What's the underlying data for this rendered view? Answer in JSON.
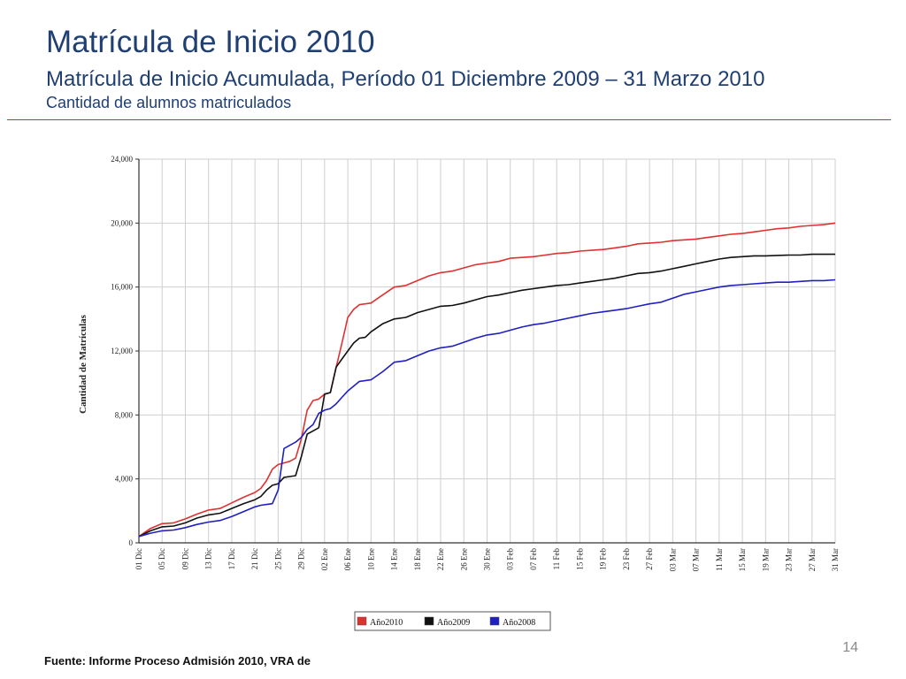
{
  "slide": {
    "title": "Matrícula de Inicio 2010",
    "subtitle": "Matrícula de Inicio Acumulada, Período 01 Diciembre 2009 – 31 Marzo 2010",
    "subsubtitle": "Cantidad de alumnos matriculados",
    "page_number": "14",
    "source": "Fuente: Informe Proceso Admisión 2010, VRA de"
  },
  "chart_data": {
    "type": "line",
    "ylabel": "Cantidad de Matrículas",
    "xlabel": "",
    "ylim": [
      0,
      24000
    ],
    "y_ticks": [
      "0",
      "4,000",
      "8,000",
      "12,000",
      "16,000",
      "20,000",
      "24,000"
    ],
    "x_tick_labels": [
      "01 Dic",
      "05 Dic",
      "09 Dic",
      "13 Dic",
      "17 Dic",
      "21 Dic",
      "25 Dic",
      "29 Dic",
      "02 Ene",
      "06 Ene",
      "10 Ene",
      "14 Ene",
      "18 Ene",
      "22 Ene",
      "26 Ene",
      "30 Ene",
      "03 Feb",
      "07 Feb",
      "11 Feb",
      "15 Feb",
      "19 Feb",
      "23 Feb",
      "27 Feb",
      "03 Mar",
      "07 Mar",
      "11 Mar",
      "15 Mar",
      "19 Mar",
      "23 Mar",
      "27 Mar",
      "31 Mar"
    ],
    "x_tick_days": [
      1,
      5,
      9,
      13,
      17,
      21,
      25,
      29,
      33,
      37,
      41,
      45,
      49,
      53,
      57,
      61,
      65,
      69,
      73,
      77,
      81,
      85,
      89,
      93,
      97,
      101,
      105,
      109,
      113,
      117,
      121
    ],
    "x_range": [
      1,
      121
    ],
    "grid": true,
    "legend_position": "bottom-center",
    "series": [
      {
        "name": "Año2010",
        "color": "#e03131",
        "points": [
          [
            1,
            400
          ],
          [
            3,
            900
          ],
          [
            5,
            1200
          ],
          [
            7,
            1250
          ],
          [
            9,
            1500
          ],
          [
            11,
            1800
          ],
          [
            13,
            2050
          ],
          [
            15,
            2150
          ],
          [
            17,
            2500
          ],
          [
            19,
            2850
          ],
          [
            21,
            3150
          ],
          [
            22,
            3400
          ],
          [
            23,
            3900
          ],
          [
            24,
            4600
          ],
          [
            25,
            4900
          ],
          [
            26,
            5000
          ],
          [
            27,
            5100
          ],
          [
            28,
            5300
          ],
          [
            29,
            6500
          ],
          [
            30,
            8300
          ],
          [
            31,
            8900
          ],
          [
            32,
            9000
          ],
          [
            33,
            9300
          ],
          [
            34,
            9400
          ],
          [
            35,
            11000
          ],
          [
            36,
            12500
          ],
          [
            37,
            14100
          ],
          [
            38,
            14600
          ],
          [
            39,
            14900
          ],
          [
            41,
            15000
          ],
          [
            43,
            15500
          ],
          [
            45,
            16000
          ],
          [
            47,
            16100
          ],
          [
            49,
            16400
          ],
          [
            51,
            16700
          ],
          [
            53,
            16900
          ],
          [
            55,
            17000
          ],
          [
            57,
            17200
          ],
          [
            59,
            17400
          ],
          [
            61,
            17500
          ],
          [
            63,
            17600
          ],
          [
            65,
            17800
          ],
          [
            67,
            17850
          ],
          [
            69,
            17900
          ],
          [
            71,
            18000
          ],
          [
            73,
            18100
          ],
          [
            75,
            18150
          ],
          [
            77,
            18250
          ],
          [
            79,
            18300
          ],
          [
            81,
            18350
          ],
          [
            83,
            18450
          ],
          [
            85,
            18550
          ],
          [
            87,
            18700
          ],
          [
            89,
            18750
          ],
          [
            91,
            18800
          ],
          [
            93,
            18900
          ],
          [
            95,
            18950
          ],
          [
            97,
            19000
          ],
          [
            99,
            19100
          ],
          [
            101,
            19200
          ],
          [
            103,
            19300
          ],
          [
            105,
            19350
          ],
          [
            107,
            19450
          ],
          [
            109,
            19550
          ],
          [
            111,
            19650
          ],
          [
            113,
            19700
          ],
          [
            115,
            19800
          ],
          [
            117,
            19850
          ],
          [
            119,
            19900
          ],
          [
            121,
            20000
          ]
        ]
      },
      {
        "name": "Año2009",
        "color": "#111111",
        "points": [
          [
            1,
            400
          ],
          [
            3,
            750
          ],
          [
            5,
            1000
          ],
          [
            7,
            1050
          ],
          [
            9,
            1250
          ],
          [
            11,
            1550
          ],
          [
            13,
            1750
          ],
          [
            15,
            1850
          ],
          [
            17,
            2150
          ],
          [
            19,
            2450
          ],
          [
            21,
            2700
          ],
          [
            22,
            2900
          ],
          [
            23,
            3300
          ],
          [
            24,
            3600
          ],
          [
            25,
            3700
          ],
          [
            26,
            4100
          ],
          [
            27,
            4150
          ],
          [
            28,
            4200
          ],
          [
            29,
            5400
          ],
          [
            30,
            6800
          ],
          [
            31,
            7000
          ],
          [
            32,
            7200
          ],
          [
            33,
            9300
          ],
          [
            34,
            9400
          ],
          [
            35,
            11000
          ],
          [
            36,
            11500
          ],
          [
            37,
            12000
          ],
          [
            38,
            12500
          ],
          [
            39,
            12800
          ],
          [
            40,
            12850
          ],
          [
            41,
            13200
          ],
          [
            43,
            13700
          ],
          [
            45,
            14000
          ],
          [
            47,
            14100
          ],
          [
            49,
            14400
          ],
          [
            51,
            14600
          ],
          [
            53,
            14800
          ],
          [
            55,
            14850
          ],
          [
            57,
            15000
          ],
          [
            59,
            15200
          ],
          [
            61,
            15400
          ],
          [
            63,
            15500
          ],
          [
            65,
            15650
          ],
          [
            67,
            15800
          ],
          [
            69,
            15900
          ],
          [
            71,
            16000
          ],
          [
            73,
            16100
          ],
          [
            75,
            16150
          ],
          [
            77,
            16250
          ],
          [
            79,
            16350
          ],
          [
            81,
            16450
          ],
          [
            83,
            16550
          ],
          [
            85,
            16700
          ],
          [
            87,
            16850
          ],
          [
            89,
            16900
          ],
          [
            91,
            17000
          ],
          [
            93,
            17150
          ],
          [
            95,
            17300
          ],
          [
            97,
            17450
          ],
          [
            99,
            17600
          ],
          [
            101,
            17750
          ],
          [
            103,
            17850
          ],
          [
            105,
            17900
          ],
          [
            107,
            17950
          ],
          [
            109,
            17950
          ],
          [
            111,
            17980
          ],
          [
            113,
            18000
          ],
          [
            115,
            18000
          ],
          [
            117,
            18050
          ],
          [
            119,
            18050
          ],
          [
            121,
            18050
          ]
        ]
      },
      {
        "name": "Año2008",
        "color": "#2020c0",
        "points": [
          [
            1,
            400
          ],
          [
            3,
            600
          ],
          [
            5,
            750
          ],
          [
            7,
            800
          ],
          [
            9,
            950
          ],
          [
            11,
            1150
          ],
          [
            13,
            1300
          ],
          [
            15,
            1400
          ],
          [
            17,
            1650
          ],
          [
            19,
            1950
          ],
          [
            21,
            2250
          ],
          [
            22,
            2350
          ],
          [
            23,
            2400
          ],
          [
            24,
            2450
          ],
          [
            25,
            3300
          ],
          [
            26,
            5900
          ],
          [
            27,
            6100
          ],
          [
            28,
            6300
          ],
          [
            29,
            6600
          ],
          [
            30,
            7100
          ],
          [
            31,
            7400
          ],
          [
            32,
            8100
          ],
          [
            33,
            8300
          ],
          [
            34,
            8400
          ],
          [
            35,
            8700
          ],
          [
            36,
            9100
          ],
          [
            37,
            9500
          ],
          [
            38,
            9800
          ],
          [
            39,
            10100
          ],
          [
            41,
            10200
          ],
          [
            43,
            10700
          ],
          [
            45,
            11300
          ],
          [
            47,
            11400
          ],
          [
            49,
            11700
          ],
          [
            51,
            12000
          ],
          [
            53,
            12200
          ],
          [
            55,
            12300
          ],
          [
            57,
            12550
          ],
          [
            59,
            12800
          ],
          [
            61,
            13000
          ],
          [
            63,
            13100
          ],
          [
            65,
            13300
          ],
          [
            67,
            13500
          ],
          [
            69,
            13650
          ],
          [
            71,
            13750
          ],
          [
            73,
            13900
          ],
          [
            75,
            14050
          ],
          [
            77,
            14200
          ],
          [
            79,
            14350
          ],
          [
            81,
            14450
          ],
          [
            83,
            14550
          ],
          [
            85,
            14650
          ],
          [
            87,
            14800
          ],
          [
            89,
            14950
          ],
          [
            91,
            15050
          ],
          [
            93,
            15300
          ],
          [
            95,
            15550
          ],
          [
            97,
            15700
          ],
          [
            99,
            15850
          ],
          [
            101,
            16000
          ],
          [
            103,
            16100
          ],
          [
            105,
            16150
          ],
          [
            107,
            16200
          ],
          [
            109,
            16250
          ],
          [
            111,
            16300
          ],
          [
            113,
            16300
          ],
          [
            115,
            16350
          ],
          [
            117,
            16400
          ],
          [
            119,
            16400
          ],
          [
            121,
            16450
          ]
        ]
      }
    ]
  }
}
